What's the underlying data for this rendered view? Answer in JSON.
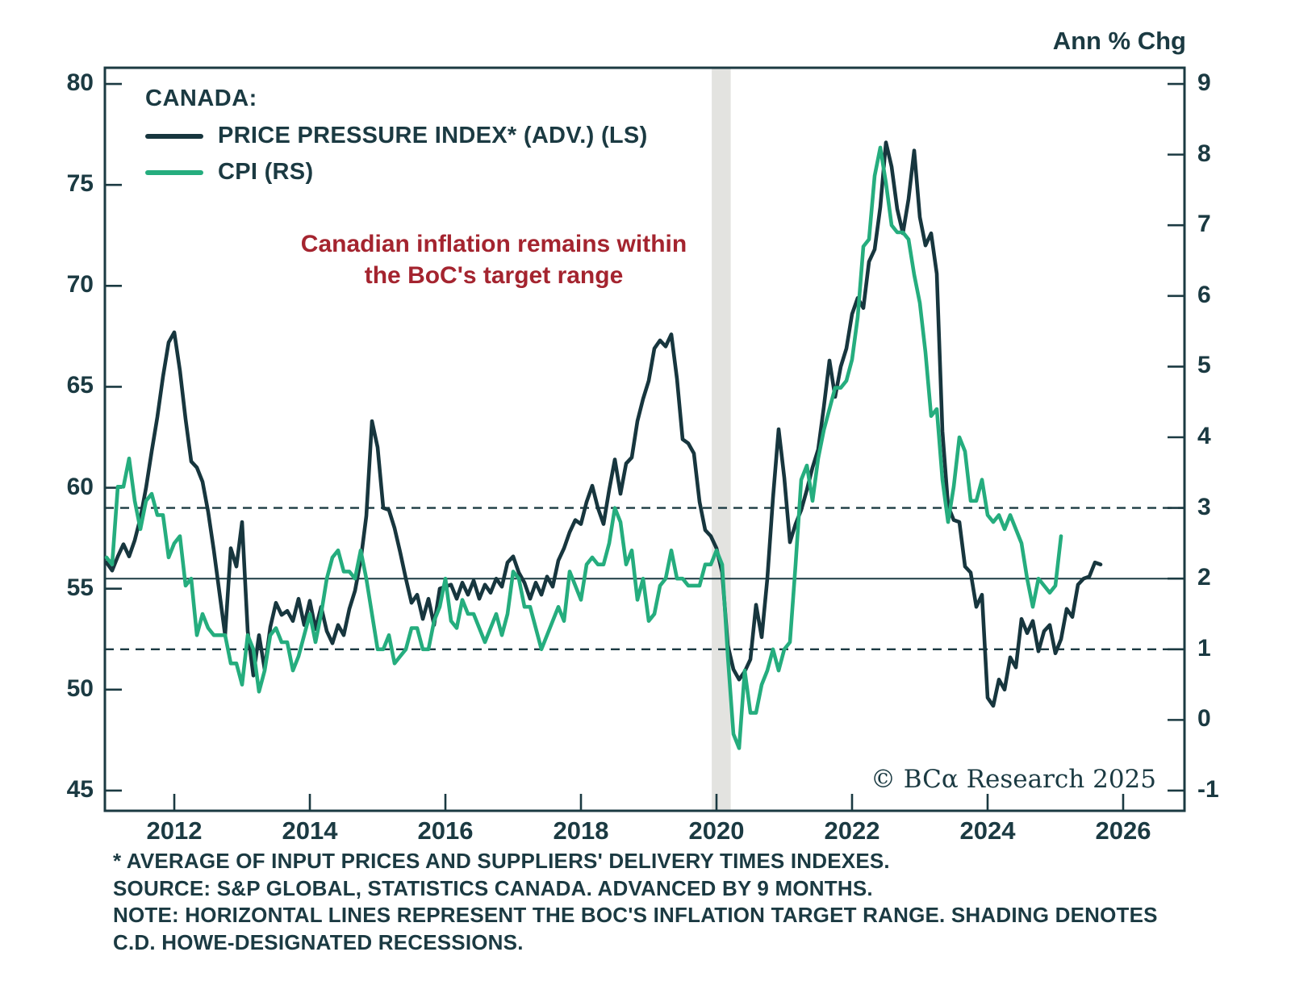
{
  "header": {
    "right_axis_title": "Ann % Chg"
  },
  "legend": {
    "group_label": "CANADA:",
    "items": [
      {
        "label": "PRICE PRESSURE INDEX* (ADV.) (LS)",
        "color": "#17363e"
      },
      {
        "label": "CPI (RS)",
        "color": "#25ad7e"
      }
    ]
  },
  "annotation": {
    "line1": "Canadian inflation remains within",
    "line2": "the BoC's target range",
    "color": "#a4242f"
  },
  "watermark": "© BCα Research 2025",
  "footnotes": [
    "* AVERAGE OF INPUT PRICES AND SUPPLIERS' DELIVERY TIMES INDEXES.",
    "SOURCE: S&P GLOBAL, STATISTICS CANADA. ADVANCED BY 9 MONTHS.",
    "NOTE: HORIZONTAL LINES REPRESENT THE BOC'S INFLATION TARGET RANGE. SHADING DENOTES",
    "C.D. HOWE-DESIGNATED RECESSIONS."
  ],
  "chart_data": {
    "type": "line",
    "title": "Canada Price Pressure Index (advanced) vs CPI",
    "x_range": [
      2010.976,
      2026.905
    ],
    "x_tick_years": [
      2012,
      2014,
      2016,
      2018,
      2020,
      2022,
      2024,
      2026
    ],
    "left_axis": {
      "ticks": [
        80,
        75,
        70,
        65,
        60,
        55,
        50,
        45
      ],
      "range": [
        44.0,
        80.8
      ]
    },
    "right_axis": {
      "ticks": [
        9,
        8,
        7,
        6,
        5,
        4,
        3,
        2,
        1,
        0,
        -1
      ],
      "range": [
        -1.2857,
        9.2286
      ]
    },
    "reference_lines": {
      "solid_right_value": 2,
      "dashed_right_values": [
        3,
        1
      ],
      "color": "#1b3a42",
      "meaning": "BoC inflation target range 1-3% with 2% midpoint"
    },
    "recession_shading": {
      "x_start": 2019.93,
      "x_end": 2020.21,
      "color": "#e3e3e0"
    },
    "grid": false,
    "legend_position": "top-left",
    "series": [
      {
        "name": "PRICE PRESSURE INDEX* (ADV.) (LS)",
        "axis": "left",
        "color": "#17363e",
        "x_start": 2011.0,
        "x_step_years": 0.083333,
        "values": [
          56.3,
          55.9,
          56.6,
          57.2,
          56.6,
          57.4,
          58.5,
          60.0,
          61.8,
          63.5,
          65.5,
          67.2,
          67.7,
          65.8,
          63.4,
          61.3,
          61.0,
          60.3,
          58.8,
          56.9,
          54.8,
          52.7,
          57.0,
          56.1,
          58.3,
          52.9,
          50.7,
          52.7,
          51.0,
          53.1,
          54.3,
          53.7,
          53.9,
          53.4,
          54.5,
          53.2,
          54.4,
          53.0,
          54.1,
          52.9,
          52.3,
          53.2,
          52.7,
          54.0,
          54.9,
          56.4,
          58.6,
          63.3,
          62.0,
          59.0,
          58.9,
          58.0,
          56.8,
          55.5,
          54.3,
          54.7,
          53.5,
          54.5,
          53.2,
          55.0,
          55.1,
          55.2,
          54.5,
          55.3,
          54.7,
          55.4,
          54.5,
          55.2,
          54.8,
          55.5,
          55.1,
          56.3,
          56.6,
          55.8,
          55.3,
          54.5,
          55.3,
          54.7,
          55.6,
          55.1,
          56.4,
          57.0,
          57.8,
          58.4,
          58.2,
          59.3,
          60.1,
          59.0,
          58.2,
          59.9,
          61.4,
          59.7,
          61.2,
          61.5,
          63.3,
          64.4,
          65.3,
          66.9,
          67.3,
          67.0,
          67.6,
          65.4,
          62.4,
          62.2,
          61.7,
          59.3,
          57.9,
          57.6,
          57.0,
          55.8,
          52.2,
          51.0,
          50.5,
          50.9,
          51.5,
          54.2,
          52.6,
          55.5,
          59.5,
          62.9,
          60.5,
          57.3,
          58.2,
          58.9,
          59.9,
          61.0,
          61.9,
          64.0,
          66.3,
          64.5,
          66.0,
          66.9,
          68.6,
          69.4,
          68.9,
          71.2,
          71.8,
          73.9,
          77.1,
          75.9,
          73.8,
          72.6,
          74.3,
          76.7,
          73.4,
          72.0,
          72.6,
          70.6,
          62.8,
          59.1,
          58.4,
          58.3,
          56.1,
          55.8,
          54.1,
          54.7,
          49.6,
          49.2,
          50.5,
          50.0,
          51.6,
          51.1,
          53.5,
          52.8,
          53.4,
          51.9,
          52.9,
          53.2,
          51.8,
          52.5,
          54.0,
          53.6,
          55.2,
          55.5,
          55.6,
          56.3,
          56.2
        ]
      },
      {
        "name": "CPI (RS)",
        "axis": "right",
        "color": "#25ad7e",
        "x_start": 2011.0,
        "x_step_years": 0.083333,
        "values": [
          2.3,
          2.2,
          3.3,
          3.3,
          3.7,
          3.1,
          2.7,
          3.1,
          3.2,
          2.9,
          2.9,
          2.3,
          2.5,
          2.6,
          1.9,
          2.0,
          1.2,
          1.5,
          1.3,
          1.2,
          1.2,
          1.2,
          0.8,
          0.8,
          0.5,
          1.2,
          1.0,
          0.4,
          0.7,
          1.2,
          1.3,
          1.1,
          1.1,
          0.7,
          0.9,
          1.2,
          1.5,
          1.1,
          1.5,
          2.0,
          2.3,
          2.4,
          2.1,
          2.1,
          2.0,
          2.4,
          2.0,
          1.5,
          1.0,
          1.0,
          1.2,
          0.8,
          0.9,
          1.0,
          1.3,
          1.3,
          1.0,
          1.0,
          1.4,
          1.6,
          2.0,
          1.4,
          1.3,
          1.7,
          1.5,
          1.5,
          1.3,
          1.1,
          1.3,
          1.5,
          1.2,
          1.5,
          2.1,
          2.0,
          1.6,
          1.6,
          1.3,
          1.0,
          1.2,
          1.4,
          1.6,
          1.4,
          2.1,
          1.9,
          1.7,
          2.2,
          2.3,
          2.2,
          2.2,
          2.5,
          3.0,
          2.8,
          2.2,
          2.4,
          1.7,
          2.0,
          1.4,
          1.5,
          1.9,
          2.0,
          2.4,
          2.0,
          2.0,
          1.9,
          1.9,
          1.9,
          2.2,
          2.2,
          2.4,
          2.2,
          0.9,
          -0.2,
          -0.4,
          0.7,
          0.1,
          0.1,
          0.5,
          0.7,
          1.0,
          0.7,
          1.0,
          1.1,
          2.2,
          3.4,
          3.6,
          3.1,
          3.7,
          4.1,
          4.4,
          4.7,
          4.7,
          4.8,
          5.1,
          5.7,
          6.7,
          6.8,
          7.7,
          8.1,
          7.6,
          7.0,
          6.9,
          6.9,
          6.8,
          6.3,
          5.9,
          5.2,
          4.3,
          4.4,
          3.4,
          2.8,
          3.3,
          4.0,
          3.8,
          3.1,
          3.1,
          3.4,
          2.9,
          2.8,
          2.9,
          2.7,
          2.9,
          2.7,
          2.5,
          2.0,
          1.6,
          2.0,
          1.9,
          1.8,
          1.9,
          2.6
        ]
      }
    ]
  }
}
